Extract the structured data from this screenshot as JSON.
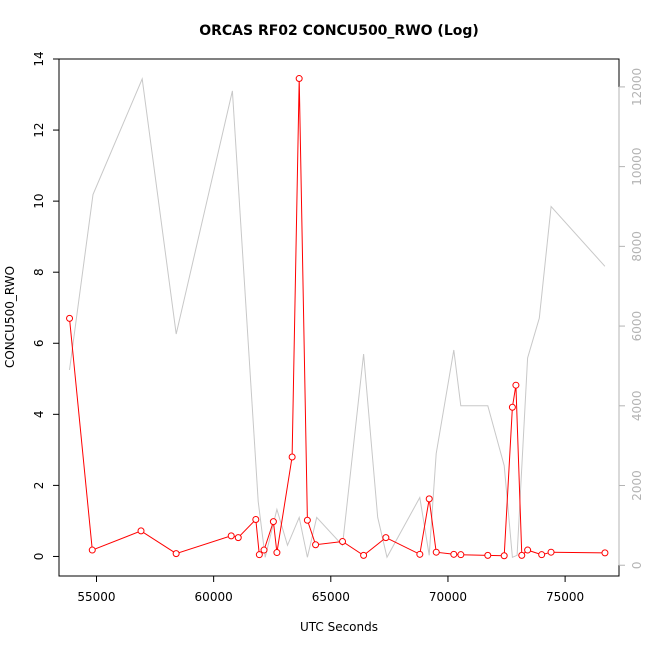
{
  "chart_data": {
    "type": "line",
    "title": "ORCAS RF02 CONCU500_RWO (Log)",
    "xlabel": "UTC Seconds",
    "ylabel": "CONCU500_RWO",
    "y2label": "",
    "xlim": [
      53400,
      77300
    ],
    "ylim": [
      -0.55,
      14.0
    ],
    "y2lim": [
      -270,
      12700
    ],
    "x_ticks": [
      55000,
      60000,
      65000,
      70000,
      75000
    ],
    "y_ticks": [
      0,
      2,
      4,
      6,
      8,
      10,
      12,
      14
    ],
    "y2_ticks": [
      0,
      2000,
      4000,
      6000,
      8000,
      10000,
      12000
    ],
    "grid": false,
    "series": [
      {
        "axis": "left",
        "color": "#ff0000",
        "marker": "open-circle",
        "x": [
          53850,
          54820,
          56900,
          58400,
          60750,
          61050,
          61800,
          61950,
          62150,
          62550,
          62700,
          63350,
          63650,
          64000,
          64350,
          65500,
          66400,
          67350,
          68800,
          69200,
          69500,
          70250,
          70550,
          71700,
          72400,
          72750,
          72900,
          73150,
          73400,
          74000,
          74400,
          76700
        ],
        "y": [
          6.7,
          0.18,
          0.72,
          0.08,
          0.58,
          0.53,
          1.04,
          0.05,
          0.18,
          0.98,
          0.11,
          2.8,
          13.45,
          1.02,
          0.33,
          0.42,
          0.03,
          0.53,
          0.06,
          1.62,
          0.12,
          0.06,
          0.05,
          0.03,
          0.02,
          4.2,
          4.82,
          0.03,
          0.18,
          0.05,
          0.12,
          0.1
        ]
      },
      {
        "axis": "right",
        "color": "#c8c8c8",
        "marker": "none",
        "x": [
          53850,
          54850,
          56950,
          58400,
          60800,
          61900,
          62200,
          62700,
          63150,
          63650,
          64000,
          64400,
          65500,
          66400,
          67000,
          67400,
          68800,
          69200,
          69500,
          70250,
          70550,
          71700,
          72400,
          72750,
          72950,
          73400,
          73900,
          74400,
          76700
        ],
        "y": [
          4900,
          9300,
          12200,
          5800,
          11900,
          1600,
          200,
          1400,
          500,
          1200,
          200,
          1200,
          500,
          5300,
          1200,
          200,
          1700,
          250,
          2800,
          5400,
          4000,
          4000,
          2500,
          200,
          250,
          5200,
          6200,
          9000,
          7500
        ]
      }
    ]
  }
}
